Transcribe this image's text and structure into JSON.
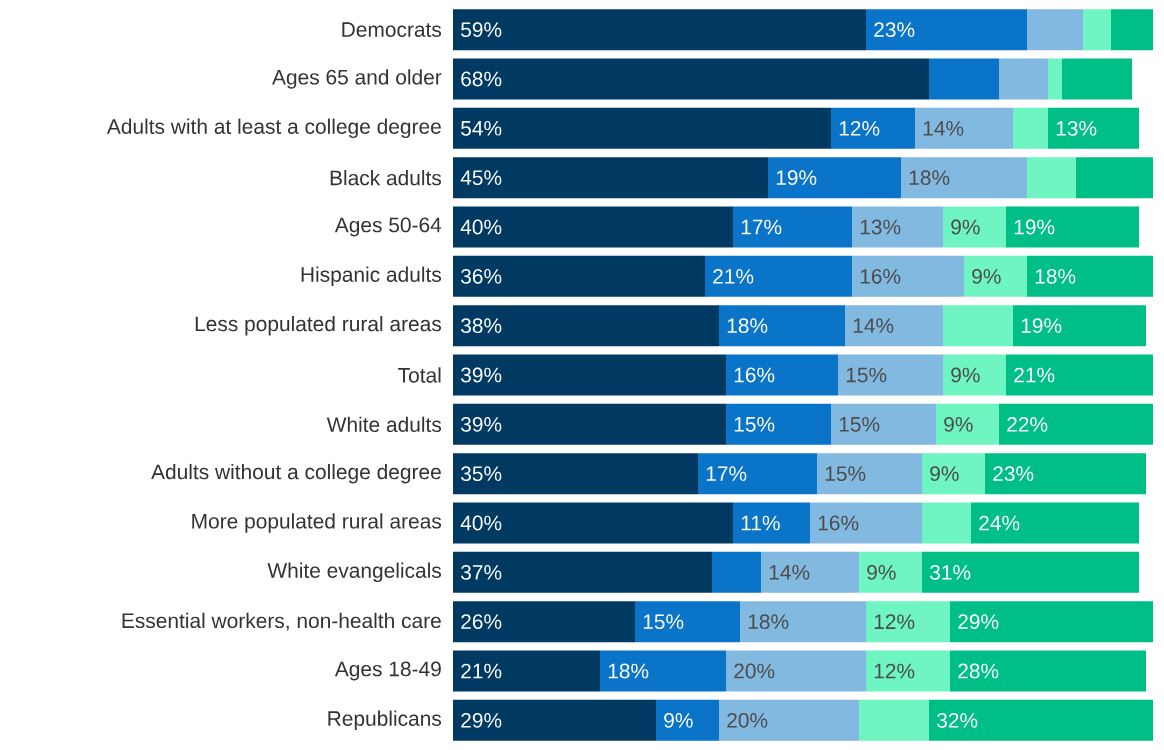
{
  "chart_data": {
    "type": "bar",
    "orientation": "horizontal",
    "stacked": true,
    "tick_labels": "y",
    "categories": [
      "Democrats",
      "Ages 65 and older",
      "Adults with at least a college degree",
      "Black adults",
      "Ages 50-64",
      "Hispanic adults",
      "Less populated rural areas",
      "Total",
      "White adults",
      "Adults without a college degree",
      "More populated rural areas",
      "White evangelicals",
      "Essential workers, non-health care",
      "Ages 18-49",
      "Republicans"
    ],
    "series": [
      {
        "color": "#003a63",
        "values": [
          59,
          68,
          54,
          45,
          40,
          36,
          38,
          39,
          39,
          35,
          40,
          37,
          26,
          21,
          29
        ],
        "value_labels": [
          "59%",
          "68%",
          "54%",
          "45%",
          "40%",
          "36%",
          "38%",
          "39%",
          "39%",
          "35%",
          "40%",
          "37%",
          "26%",
          "21%",
          "29%"
        ]
      },
      {
        "color": "#0a74c9",
        "values": [
          23,
          10,
          12,
          19,
          17,
          21,
          18,
          16,
          15,
          17,
          11,
          7,
          15,
          18,
          9
        ],
        "value_labels": [
          "23%",
          null,
          "12%",
          "19%",
          "17%",
          "21%",
          "18%",
          "16%",
          "15%",
          "17%",
          "11%",
          null,
          "15%",
          "18%",
          "9%"
        ]
      },
      {
        "color": "#82b9e1",
        "values": [
          8,
          7,
          14,
          18,
          13,
          16,
          14,
          15,
          15,
          15,
          16,
          14,
          18,
          20,
          20
        ],
        "value_labels": [
          null,
          null,
          "14%",
          "18%",
          "13%",
          "16%",
          "14%",
          "15%",
          "15%",
          "15%",
          "16%",
          "14%",
          "18%",
          "20%",
          "20%"
        ]
      },
      {
        "color": "#6ef5c1",
        "values": [
          4,
          2,
          5,
          7,
          9,
          9,
          10,
          9,
          9,
          9,
          7,
          9,
          12,
          12,
          10
        ],
        "value_labels": [
          null,
          null,
          null,
          null,
          "9%",
          "9%",
          null,
          "9%",
          "9%",
          "9%",
          null,
          "9%",
          "12%",
          "12%",
          null
        ]
      },
      {
        "color": "#00bf86",
        "values": [
          6,
          10,
          13,
          11,
          19,
          18,
          19,
          21,
          22,
          23,
          24,
          31,
          29,
          28,
          32
        ],
        "value_labels": [
          null,
          null,
          "13%",
          null,
          "19%",
          "18%",
          "19%",
          "21%",
          "22%",
          "23%",
          "24%",
          "31%",
          "29%",
          "28%",
          "32%"
        ]
      }
    ]
  }
}
